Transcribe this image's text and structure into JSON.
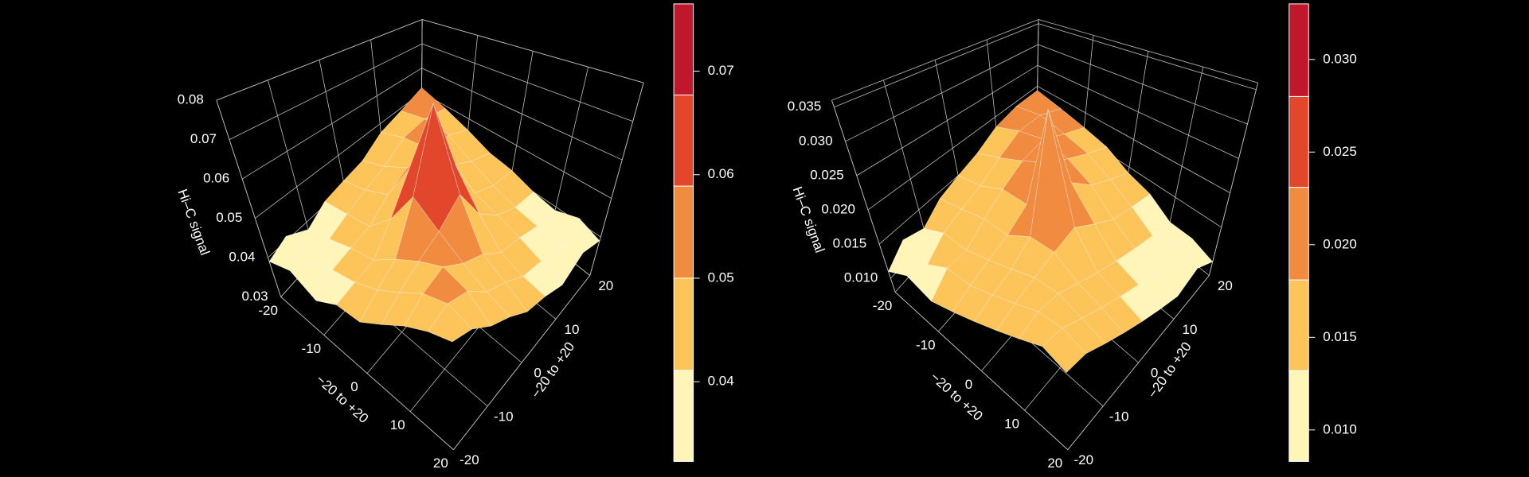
{
  "chart_data": [
    {
      "type": "surface",
      "z_label": "Hi–C signal",
      "x_label": "−20 to +20",
      "y_label": "−20 to +20",
      "x": [
        -20,
        -15,
        -10,
        -5,
        0,
        5,
        10,
        15,
        20
      ],
      "y": [
        -20,
        -15,
        -10,
        -5,
        0,
        5,
        10,
        15,
        20
      ],
      "z": [
        [
          0.039,
          0.041,
          0.038,
          0.041,
          0.042,
          0.043,
          0.047,
          0.049,
          0.052
        ],
        [
          0.041,
          0.039,
          0.04,
          0.042,
          0.044,
          0.046,
          0.05,
          0.051,
          0.049
        ],
        [
          0.038,
          0.041,
          0.042,
          0.043,
          0.047,
          0.05,
          0.051,
          0.05,
          0.046
        ],
        [
          0.041,
          0.042,
          0.043,
          0.049,
          0.058,
          0.054,
          0.05,
          0.046,
          0.043
        ],
        [
          0.041,
          0.044,
          0.047,
          0.058,
          0.078,
          0.058,
          0.046,
          0.043,
          0.042
        ],
        [
          0.044,
          0.047,
          0.05,
          0.053,
          0.058,
          0.049,
          0.044,
          0.041,
          0.04
        ],
        [
          0.047,
          0.05,
          0.052,
          0.049,
          0.047,
          0.043,
          0.042,
          0.04,
          0.039
        ],
        [
          0.049,
          0.051,
          0.05,
          0.046,
          0.044,
          0.041,
          0.04,
          0.039,
          0.041
        ],
        [
          0.05,
          0.049,
          0.046,
          0.044,
          0.041,
          0.04,
          0.038,
          0.041,
          0.039
        ]
      ],
      "xlim": [
        -20,
        20
      ],
      "ylim": [
        -20,
        20
      ],
      "zlim": [
        0.03,
        0.08
      ],
      "xticks": [
        -20,
        -10,
        0,
        10,
        20
      ],
      "yticks": [
        -20,
        -10,
        0,
        10,
        20
      ],
      "zticks": [
        0.03,
        0.04,
        0.05,
        0.06,
        0.07,
        0.08
      ],
      "grid": true,
      "colorbar": {
        "breaks": [
          0.0323,
          0.0411,
          0.05,
          0.0589,
          0.0677,
          0.0765
        ],
        "colors": [
          "#fff5b8",
          "#fdc45a",
          "#f08b40",
          "#e3472b",
          "#c0172c"
        ],
        "ticks": [
          0.04,
          0.05,
          0.06,
          0.07
        ]
      }
    },
    {
      "type": "surface",
      "z_label": "Hi–C signal",
      "x_label": "−20 to +20",
      "y_label": "−20 to +20",
      "x": [
        -20,
        -15,
        -10,
        -5,
        0,
        5,
        10,
        15,
        20
      ],
      "y": [
        -20,
        -15,
        -10,
        -5,
        0,
        5,
        10,
        15,
        20
      ],
      "z": [
        [
          0.011,
          0.013,
          0.012,
          0.014,
          0.015,
          0.016,
          0.018,
          0.019,
          0.019
        ],
        [
          0.013,
          0.012,
          0.014,
          0.015,
          0.016,
          0.018,
          0.02,
          0.02,
          0.018
        ],
        [
          0.012,
          0.014,
          0.014,
          0.016,
          0.018,
          0.02,
          0.021,
          0.019,
          0.017
        ],
        [
          0.013,
          0.014,
          0.015,
          0.016,
          0.018,
          0.022,
          0.02,
          0.018,
          0.016
        ],
        [
          0.014,
          0.015,
          0.016,
          0.018,
          0.034,
          0.021,
          0.018,
          0.016,
          0.014
        ],
        [
          0.015,
          0.016,
          0.017,
          0.018,
          0.019,
          0.017,
          0.015,
          0.014,
          0.013
        ],
        [
          0.016,
          0.017,
          0.017,
          0.016,
          0.015,
          0.014,
          0.013,
          0.012,
          0.011
        ],
        [
          0.017,
          0.017,
          0.016,
          0.015,
          0.014,
          0.013,
          0.012,
          0.013,
          0.011
        ],
        [
          0.016,
          0.016,
          0.015,
          0.014,
          0.013,
          0.012,
          0.011,
          0.012,
          0.01
        ]
      ],
      "xlim": [
        -20,
        20
      ],
      "ylim": [
        -20,
        20
      ],
      "zlim": [
        0.008,
        0.036
      ],
      "xticks": [
        -20,
        -10,
        0,
        10,
        20
      ],
      "yticks": [
        -20,
        -10,
        0,
        10,
        20
      ],
      "zticks": [
        {
          "value": 0.01,
          "label": "0.010"
        },
        0.015,
        {
          "value": 0.02,
          "label": "0.020"
        },
        0.025,
        {
          "value": 0.03,
          "label": "0.030"
        },
        0.035
      ],
      "grid": true,
      "colorbar": {
        "breaks": [
          0.0083,
          0.0132,
          0.0181,
          0.0231,
          0.028,
          0.033
        ],
        "colors": [
          "#fff5b8",
          "#fdc45a",
          "#f08b40",
          "#e3472b",
          "#c0172c"
        ],
        "ticks": [
          {
            "value": 0.01,
            "label": "0.010"
          },
          {
            "value": 0.015,
            "label": "0.015"
          },
          {
            "value": 0.02,
            "label": "0.020"
          },
          {
            "value": 0.025,
            "label": "0.025"
          },
          {
            "value": 0.03,
            "label": "0.030"
          }
        ]
      }
    }
  ]
}
